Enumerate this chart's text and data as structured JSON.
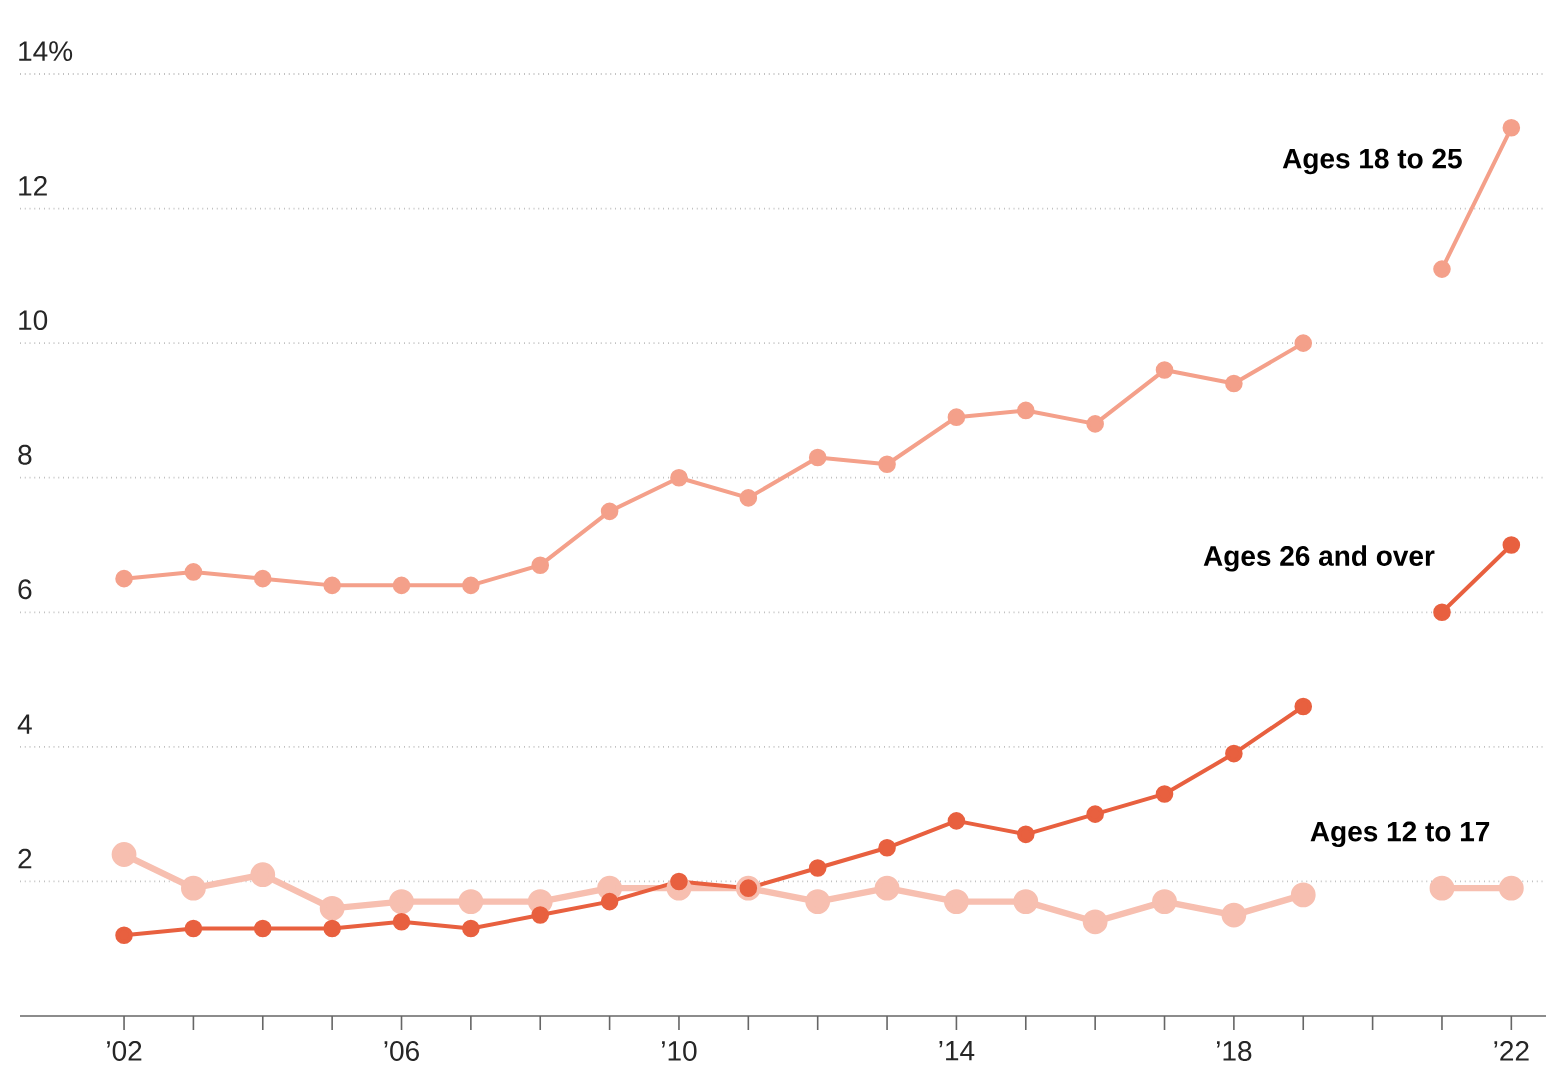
{
  "chart_data": {
    "type": "line",
    "x": [
      2002,
      2003,
      2004,
      2005,
      2006,
      2007,
      2008,
      2009,
      2010,
      2011,
      2012,
      2013,
      2014,
      2015,
      2016,
      2017,
      2018,
      2019,
      2020,
      2021,
      2022
    ],
    "series": [
      {
        "name": "Ages 12 to 17",
        "color": "#f7bfb0",
        "values": [
          2.4,
          1.9,
          2.1,
          1.6,
          1.7,
          1.7,
          1.7,
          1.9,
          1.9,
          1.9,
          1.7,
          1.9,
          1.7,
          1.7,
          1.4,
          1.7,
          1.5,
          1.8,
          null,
          1.9,
          1.9
        ]
      },
      {
        "name": "Ages 18 to 25",
        "color": "#f4a08a",
        "values": [
          6.5,
          6.6,
          6.5,
          6.4,
          6.4,
          6.4,
          6.7,
          7.5,
          8.0,
          7.7,
          8.3,
          8.2,
          8.9,
          9.0,
          8.8,
          9.6,
          9.4,
          10.0,
          null,
          11.1,
          13.2
        ]
      },
      {
        "name": "Ages 26 and over",
        "color": "#e8603f",
        "values": [
          1.2,
          1.3,
          1.3,
          1.3,
          1.4,
          1.3,
          1.5,
          1.7,
          2.0,
          1.9,
          2.2,
          2.5,
          2.9,
          2.7,
          3.0,
          3.3,
          3.9,
          4.6,
          null,
          6.0,
          7.0
        ]
      }
    ],
    "xlim": [
      2000.5,
      2022.5
    ],
    "xticks": [
      {
        "value": 2002,
        "label": "’02"
      },
      {
        "value": 2003,
        "label": null
      },
      {
        "value": 2004,
        "label": null
      },
      {
        "value": 2005,
        "label": null
      },
      {
        "value": 2006,
        "label": "’06"
      },
      {
        "value": 2007,
        "label": null
      },
      {
        "value": 2008,
        "label": null
      },
      {
        "value": 2009,
        "label": null
      },
      {
        "value": 2010,
        "label": "’10"
      },
      {
        "value": 2011,
        "label": null
      },
      {
        "value": 2012,
        "label": null
      },
      {
        "value": 2013,
        "label": null
      },
      {
        "value": 2014,
        "label": "’14"
      },
      {
        "value": 2015,
        "label": null
      },
      {
        "value": 2016,
        "label": null
      },
      {
        "value": 2017,
        "label": null
      },
      {
        "value": 2018,
        "label": "’18"
      },
      {
        "value": 2019,
        "label": null
      },
      {
        "value": 2020,
        "label": null
      },
      {
        "value": 2021,
        "label": null
      },
      {
        "value": 2022,
        "label": "’22"
      }
    ],
    "ylim": [
      0,
      14
    ],
    "yticks": [
      2,
      4,
      6,
      8,
      10,
      12,
      {
        "value": 14,
        "label": "14%"
      }
    ],
    "grid": "y",
    "marker": "circle",
    "line_style": "solid"
  }
}
